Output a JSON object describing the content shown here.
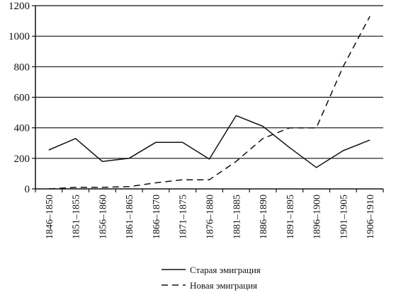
{
  "chart_data": {
    "type": "line",
    "title": "",
    "xlabel": "",
    "ylabel": "",
    "ylim": [
      0,
      1200
    ],
    "yticks": [
      0,
      200,
      400,
      600,
      800,
      1000,
      1200
    ],
    "grid": "horizontal",
    "legend_position": "bottom-center",
    "categories": [
      "1846–1850",
      "1851–1855",
      "1856–1860",
      "1861–1865",
      "1866–1870",
      "1871–1875",
      "1876–1880",
      "1881–1885",
      "1886–1890",
      "1891–1895",
      "1896–1900",
      "1901–1905",
      "1906–1910"
    ],
    "series": [
      {
        "name": "Старая эмиграция",
        "style": "solid",
        "color": "#111111",
        "values": [
          255,
          330,
          180,
          200,
          305,
          305,
          195,
          480,
          410,
          270,
          140,
          250,
          320
        ]
      },
      {
        "name": "Новая эмиграция",
        "style": "dashed",
        "color": "#111111",
        "values": [
          0,
          10,
          10,
          15,
          40,
          60,
          60,
          180,
          330,
          400,
          400,
          800,
          1130
        ]
      }
    ]
  }
}
